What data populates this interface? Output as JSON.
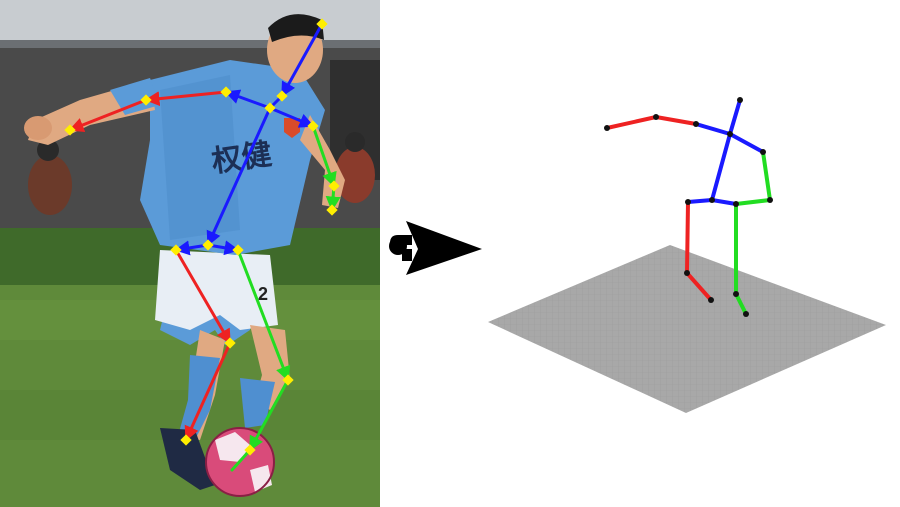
{
  "photo": {
    "jersey_text": "权健",
    "shorts_number": "2",
    "colors": {
      "sky": "#c8ccd0",
      "stadium": "#4a4a4a",
      "grass_far": "#3f6a2a",
      "grass_near": "#5f8a3a",
      "jersey": "#5b9bd8",
      "skin": "#e0a982",
      "hair": "#1b1b1b",
      "shorts": "#e8eef5",
      "sock": "#4f8fd0",
      "shoe": "#1f2a44",
      "ball": "#d94b7a"
    }
  },
  "skeleton_colors": {
    "spine": "#1a1aff",
    "right_limb": "#ee2222",
    "left_limb": "#22dd22",
    "joint": "#ffee00",
    "joint_3d": "#111111",
    "floor": "#a8a8a8"
  },
  "arrow_icon": "right-arrow-icon"
}
